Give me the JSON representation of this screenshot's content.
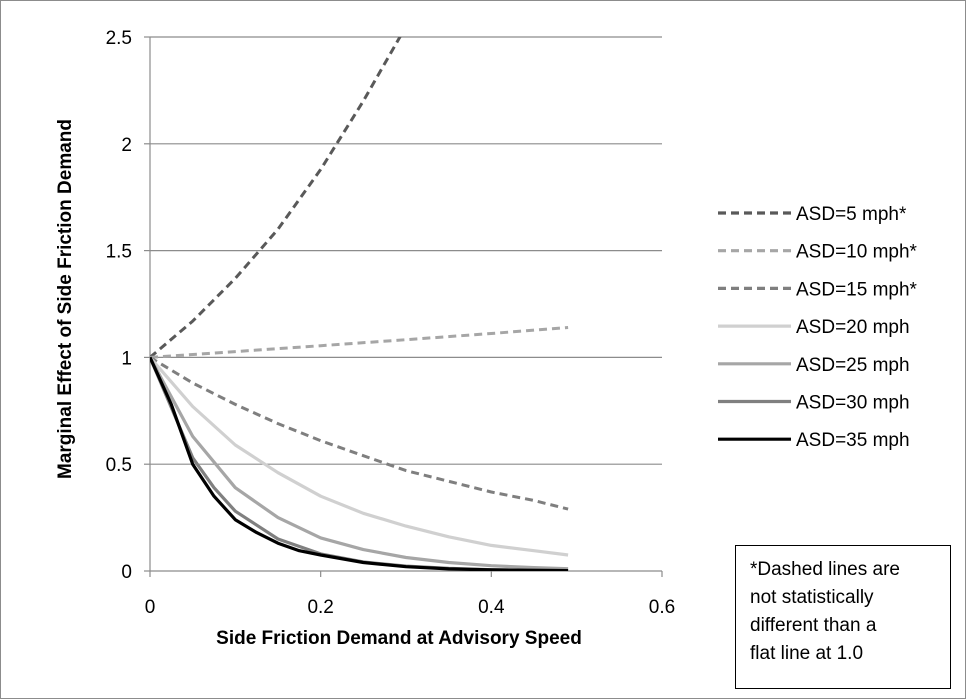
{
  "chart_data": {
    "type": "line",
    "xlabel": "Side Friction Demand at Advisory Speed",
    "ylabel": "Marginal Effect of Side Friction Demand",
    "xlim": [
      0,
      0.6
    ],
    "ylim": [
      0,
      2.5
    ],
    "x_ticks": [
      "0",
      "0.2",
      "0.4",
      "0.6"
    ],
    "y_ticks": [
      "0",
      "0.5",
      "1",
      "1.5",
      "2",
      "2.5"
    ],
    "grid": "horizontal",
    "legend_position": "right",
    "series": [
      {
        "name": "ASD=5 mph*",
        "style": "dashed",
        "color": "#595959",
        "points": [
          [
            0,
            1
          ],
          [
            0.05,
            1.17
          ],
          [
            0.1,
            1.37
          ],
          [
            0.15,
            1.6
          ],
          [
            0.2,
            1.88
          ],
          [
            0.25,
            2.2
          ],
          [
            0.3,
            2.55
          ]
        ]
      },
      {
        "name": "ASD=10 mph*",
        "style": "dashed",
        "color": "#a6a6a6",
        "points": [
          [
            0,
            1
          ],
          [
            0.1,
            1.027
          ],
          [
            0.2,
            1.055
          ],
          [
            0.3,
            1.083
          ],
          [
            0.4,
            1.112
          ],
          [
            0.49,
            1.14
          ]
        ]
      },
      {
        "name": "ASD=15 mph*",
        "style": "dashed",
        "color": "#7f7f7f",
        "points": [
          [
            0,
            1
          ],
          [
            0.05,
            0.88
          ],
          [
            0.1,
            0.78
          ],
          [
            0.15,
            0.69
          ],
          [
            0.2,
            0.61
          ],
          [
            0.25,
            0.54
          ],
          [
            0.3,
            0.47
          ],
          [
            0.35,
            0.42
          ],
          [
            0.4,
            0.37
          ],
          [
            0.45,
            0.33
          ],
          [
            0.49,
            0.29
          ]
        ]
      },
      {
        "name": "ASD=20 mph",
        "style": "solid",
        "color": "#d0d0d0",
        "points": [
          [
            0,
            1
          ],
          [
            0.05,
            0.77
          ],
          [
            0.1,
            0.59
          ],
          [
            0.15,
            0.46
          ],
          [
            0.2,
            0.35
          ],
          [
            0.25,
            0.27
          ],
          [
            0.3,
            0.21
          ],
          [
            0.35,
            0.16
          ],
          [
            0.4,
            0.12
          ],
          [
            0.45,
            0.095
          ],
          [
            0.49,
            0.075
          ]
        ]
      },
      {
        "name": "ASD=25 mph",
        "style": "solid",
        "color": "#a6a6a6",
        "points": [
          [
            0,
            1
          ],
          [
            0.05,
            0.63
          ],
          [
            0.1,
            0.39
          ],
          [
            0.15,
            0.25
          ],
          [
            0.2,
            0.155
          ],
          [
            0.25,
            0.1
          ],
          [
            0.3,
            0.063
          ],
          [
            0.35,
            0.04
          ],
          [
            0.4,
            0.025
          ],
          [
            0.45,
            0.016
          ],
          [
            0.49,
            0.011
          ]
        ]
      },
      {
        "name": "ASD=30 mph",
        "style": "solid",
        "color": "#808080",
        "points": [
          [
            0,
            1
          ],
          [
            0.05,
            0.53
          ],
          [
            0.075,
            0.39
          ],
          [
            0.1,
            0.28
          ],
          [
            0.15,
            0.15
          ],
          [
            0.2,
            0.08
          ],
          [
            0.25,
            0.042
          ],
          [
            0.3,
            0.023
          ],
          [
            0.35,
            0.012
          ],
          [
            0.4,
            0.006
          ],
          [
            0.49,
            0.002
          ]
        ]
      },
      {
        "name": "ASD=35 mph",
        "style": "solid",
        "color": "#000000",
        "points": [
          [
            0,
            1
          ],
          [
            0.025,
            0.78
          ],
          [
            0.05,
            0.5
          ],
          [
            0.075,
            0.35
          ],
          [
            0.1,
            0.24
          ],
          [
            0.125,
            0.18
          ],
          [
            0.15,
            0.13
          ],
          [
            0.175,
            0.095
          ],
          [
            0.2,
            0.075
          ],
          [
            0.25,
            0.04
          ],
          [
            0.3,
            0.02
          ],
          [
            0.35,
            0.01
          ],
          [
            0.4,
            0.005
          ],
          [
            0.49,
            0.002
          ]
        ]
      }
    ],
    "annotation": "*Dashed lines are not statistically different than a flat line at 1.0"
  },
  "note": {
    "line1": "*Dashed lines are",
    "line2": "not statistically",
    "line3": "different than a",
    "line4": "flat line at 1.0"
  }
}
